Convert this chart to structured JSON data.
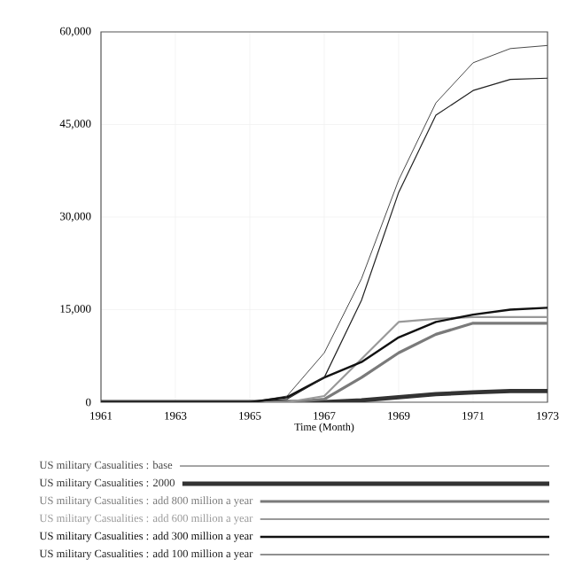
{
  "chart_data": {
    "type": "line",
    "xlabel": "Time (Month)",
    "x": [
      1961,
      1962,
      1963,
      1964,
      1965,
      1966,
      1967,
      1968,
      1969,
      1970,
      1971,
      1972,
      1973
    ],
    "xlim": [
      1961,
      1973
    ],
    "xticks": [
      1961,
      1963,
      1965,
      1967,
      1969,
      1971,
      1973
    ],
    "ylim": [
      0,
      60000
    ],
    "yticks": [
      0,
      {
        "value": 15000,
        "label": "15,000"
      },
      {
        "value": 30000,
        "label": "30,000"
      },
      {
        "value": 45000,
        "label": "45,000"
      },
      {
        "value": 60000,
        "label": "60,000"
      }
    ],
    "grid": true,
    "legend": "bottom",
    "marker": "none",
    "line_style": "solid",
    "series": [
      {
        "name": "US military Casualities : base",
        "color": "#4a4a4a",
        "values": [
          0,
          0,
          0,
          0,
          0,
          1000,
          8000,
          20000,
          36000,
          48500,
          55000,
          57300,
          57800
        ]
      },
      {
        "name": "US military Casualities : 2000",
        "color": "#333333",
        "values": [
          0,
          0,
          0,
          0,
          0,
          0,
          0,
          300,
          800,
          1300,
          1600,
          1800,
          1800
        ]
      },
      {
        "name": "US military Casualities : add 800 million a year",
        "color": "#7a7a7a",
        "values": [
          0,
          0,
          0,
          0,
          0,
          0,
          500,
          4000,
          8000,
          11000,
          12800,
          12800,
          12800
        ]
      },
      {
        "name": "US military Casualities : add 600 million a year",
        "color": "#999999",
        "values": [
          0,
          0,
          0,
          0,
          0,
          0,
          1000,
          7000,
          13000,
          13500,
          13800,
          13800,
          13800
        ]
      },
      {
        "name": "US military Casualities : add 300 million a year",
        "color": "#111111",
        "values": [
          0,
          0,
          0,
          0,
          0,
          800,
          4000,
          6500,
          10500,
          13000,
          14200,
          15000,
          15300
        ]
      },
      {
        "name": "US military Casualities : add 100 million a year",
        "color": "#222222",
        "values": [
          0,
          0,
          0,
          0,
          0,
          500,
          4000,
          16500,
          34000,
          46500,
          50500,
          52300,
          52500
        ]
      }
    ]
  }
}
